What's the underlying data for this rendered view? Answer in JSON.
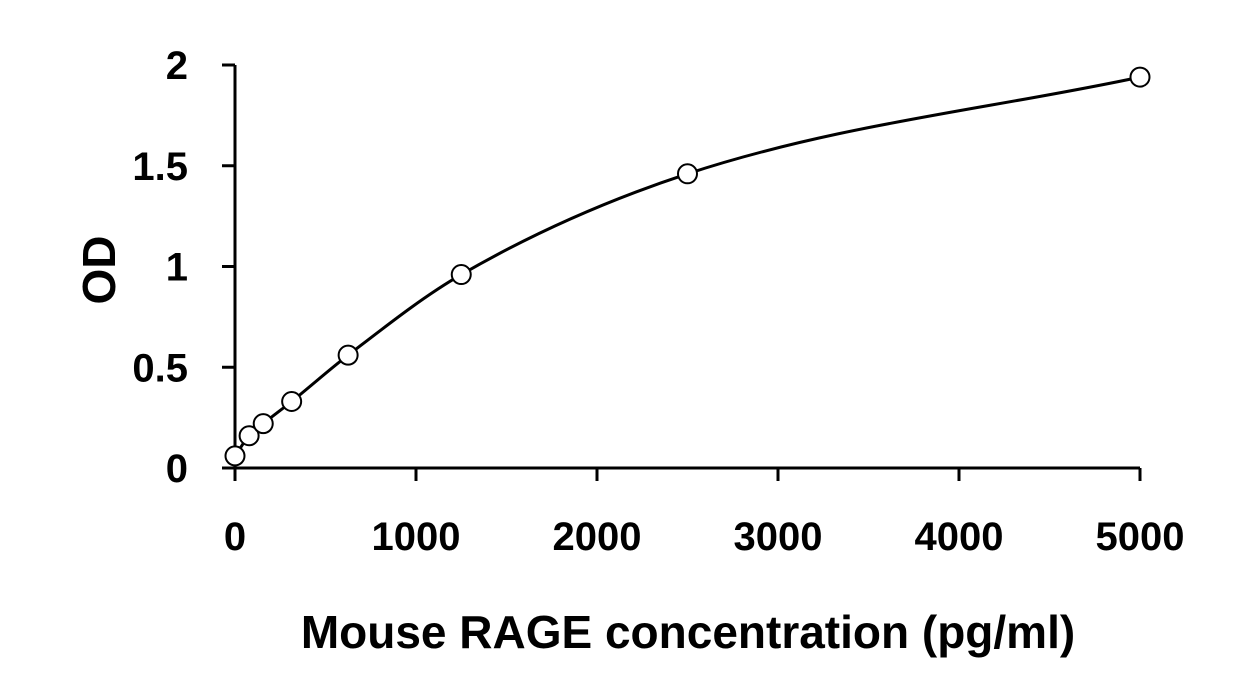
{
  "chart_data": {
    "type": "scatter",
    "title": "",
    "xlabel": "Mouse RAGE concentration (pg/ml)",
    "ylabel": "OD",
    "xlim": [
      0,
      5000
    ],
    "ylim": [
      0,
      2
    ],
    "x_ticks": [
      0,
      1000,
      2000,
      3000,
      4000,
      5000
    ],
    "y_ticks": [
      0,
      0.5,
      1,
      1.5,
      2
    ],
    "x_tick_labels": [
      "0",
      "1000",
      "2000",
      "3000",
      "4000",
      "5000"
    ],
    "y_tick_labels": [
      "0",
      "0.5",
      "1",
      "1.5",
      "2"
    ],
    "grid": false,
    "legend": "none",
    "marker": "open-circle",
    "trendline": "smooth-fit",
    "series": [
      {
        "x": [
          0,
          78,
          156,
          313,
          625,
          1250,
          2500,
          5000
        ],
        "y": [
          0.06,
          0.16,
          0.22,
          0.33,
          0.56,
          0.96,
          1.46,
          1.94
        ]
      }
    ],
    "colors": {
      "axis": "#000000",
      "marker_fill": "#ffffff",
      "marker_stroke": "#000000",
      "curve": "#000000",
      "background": "#ffffff"
    }
  }
}
